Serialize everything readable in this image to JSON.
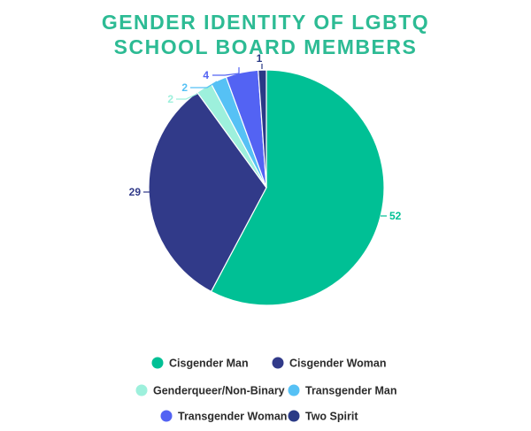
{
  "chart_data": {
    "type": "pie",
    "title_lines": [
      "GENDER IDENTITY OF LGBTQ",
      "SCHOOL BOARD MEMBERS"
    ],
    "slices": [
      {
        "label": "Cisgender Man",
        "value": 52,
        "color": "#00c095"
      },
      {
        "label": "Cisgender Woman",
        "value": 29,
        "color": "#313a89"
      },
      {
        "label": "Genderqueer/Non-Binary",
        "value": 2,
        "color": "#9df0dc"
      },
      {
        "label": "Transgender Man",
        "value": 2,
        "color": "#56c1f5"
      },
      {
        "label": "Transgender Woman",
        "value": 4,
        "color": "#5363f3"
      },
      {
        "label": "Two Spirit",
        "value": 1,
        "color": "#2a3a86"
      }
    ],
    "legend_placement": "bottom"
  }
}
